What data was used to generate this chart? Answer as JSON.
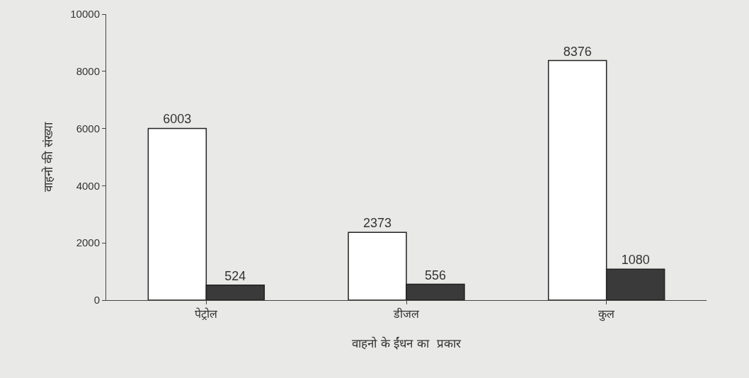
{
  "chart_data": {
    "type": "bar",
    "xlabel": "वाहनो के ईंधन का  प्रकार",
    "ylabel": "वाहनो की संख्या",
    "categories": [
      "पेट्रोल",
      "डीजल",
      "कुल"
    ],
    "series": [
      {
        "color": "#ffffff",
        "values": [
          6003,
          2373,
          8376
        ]
      },
      {
        "color": "#3a3a3a",
        "values": [
          524,
          556,
          1080
        ]
      }
    ],
    "ylim": [
      0,
      10000
    ],
    "yticks": [
      0,
      2000,
      4000,
      6000,
      8000,
      10000
    ],
    "grid": false,
    "legend": false,
    "data_labels": true
  }
}
